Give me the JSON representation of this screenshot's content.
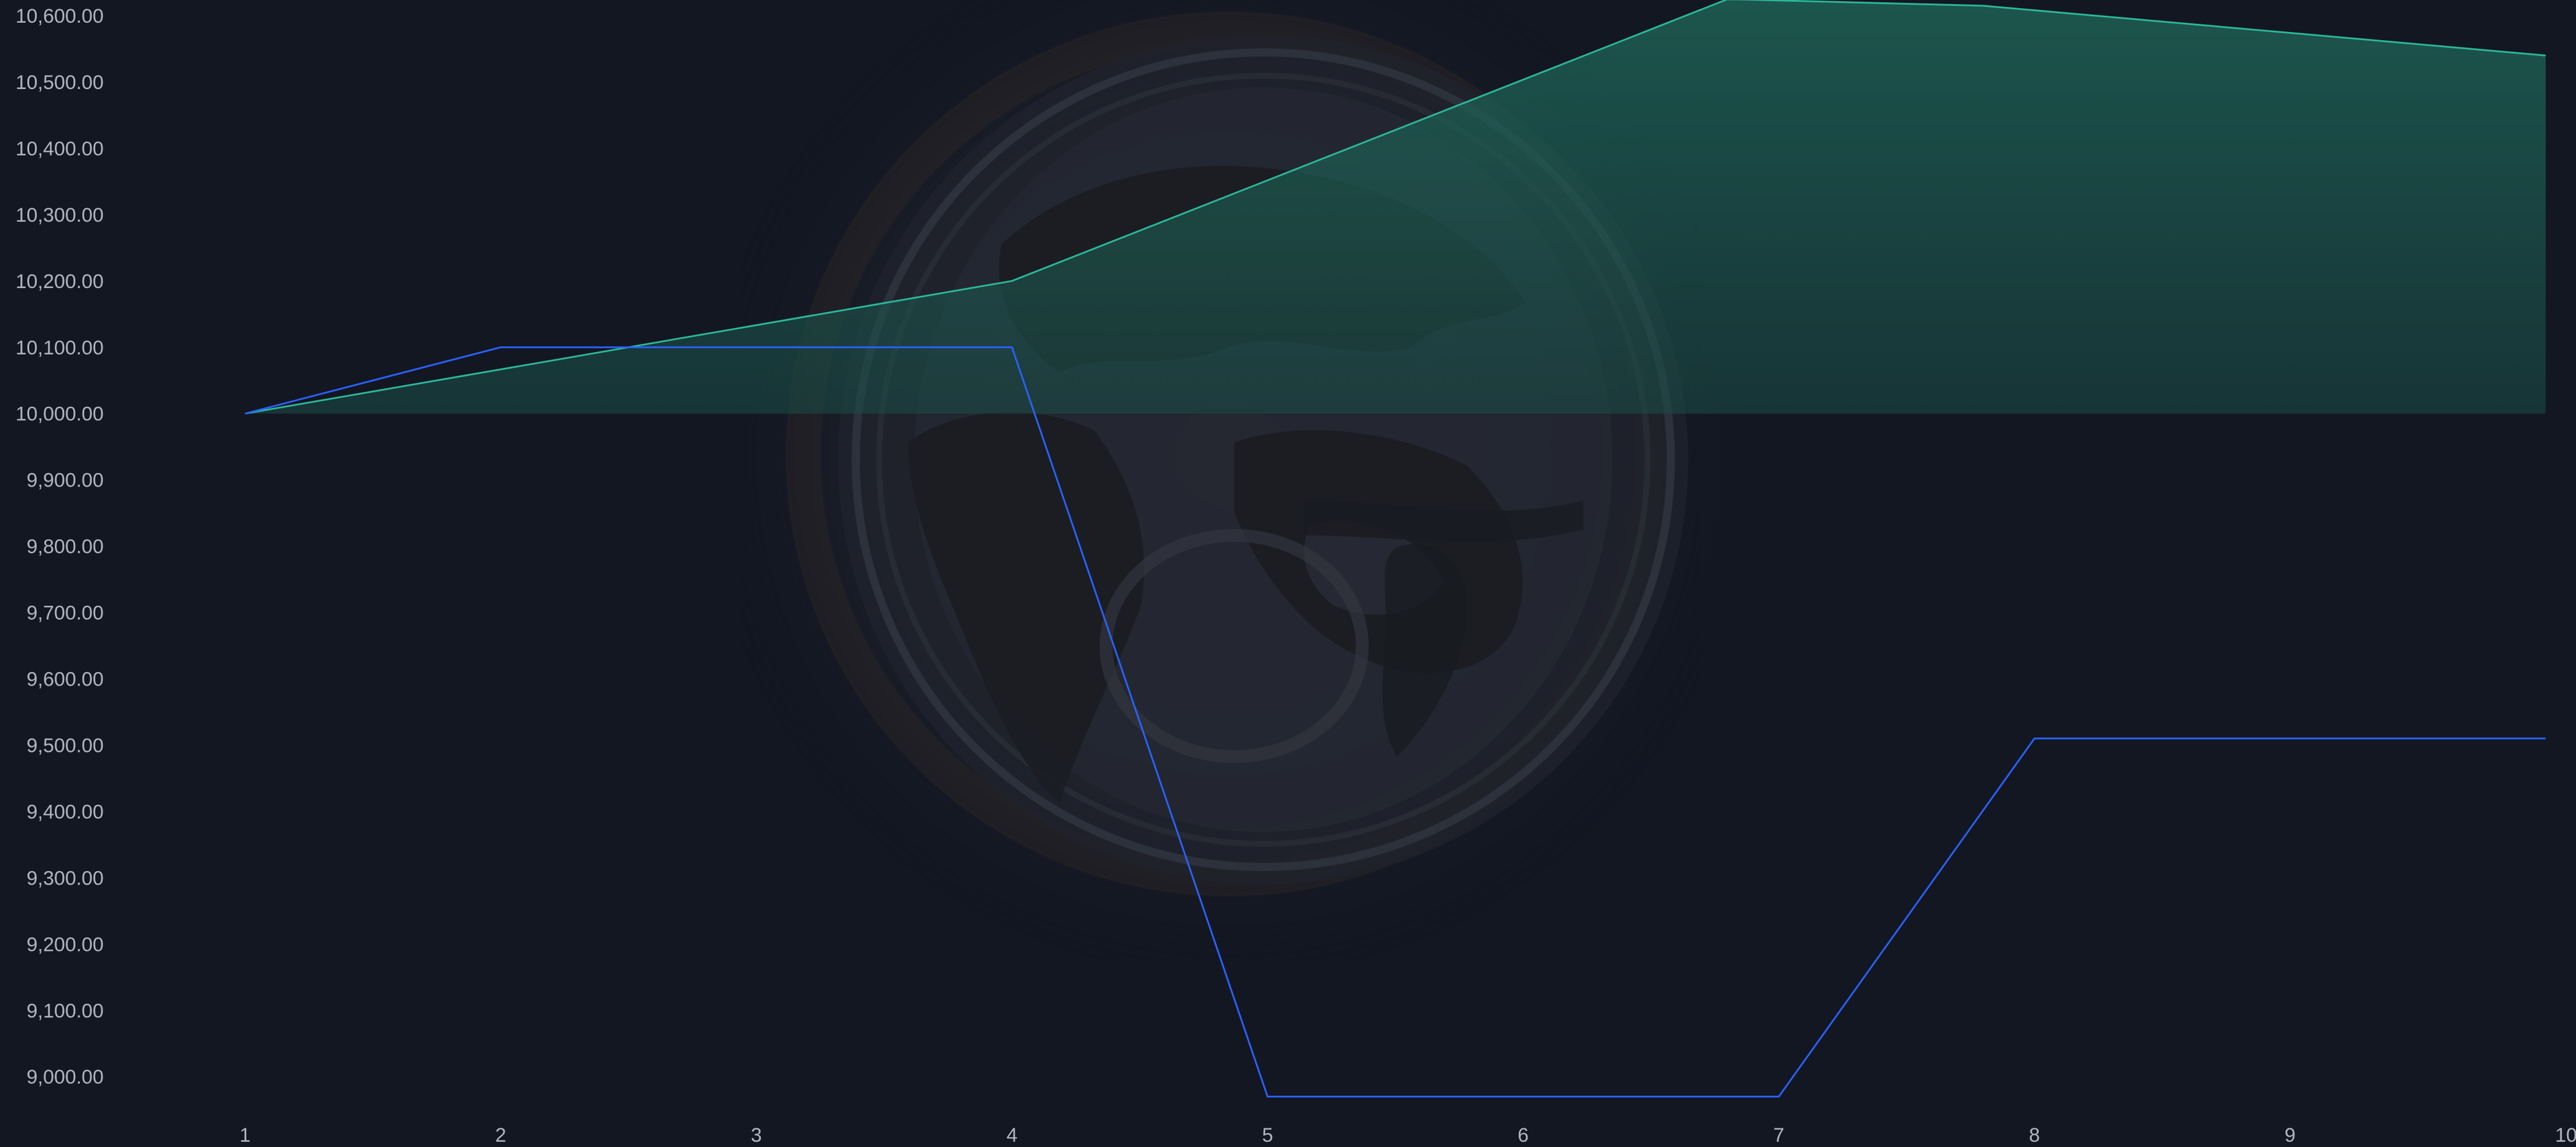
{
  "colors": {
    "background": "#131722",
    "axis_text": "#b2b5be",
    "equity_line": "#2bb89a",
    "equity_fill": "#1f5f52",
    "blue_line": "#2962ff",
    "watermark_dark": "#1e1e24"
  },
  "watermark": {
    "icon": "globe-emblem-icon"
  },
  "chart_data": {
    "type": "area",
    "title": "",
    "xlabel": "",
    "ylabel": "",
    "grid": false,
    "x": [
      1,
      2,
      3,
      4,
      5,
      6,
      7,
      8,
      9,
      10
    ],
    "x_tick_labels": [
      "1",
      "2",
      "3",
      "4",
      "5",
      "6",
      "7",
      "8",
      "9",
      "10"
    ],
    "ylim": [
      8970,
      10600
    ],
    "y_tick_values": [
      9000,
      9100,
      9200,
      9300,
      9400,
      9500,
      9600,
      9700,
      9800,
      9900,
      10000,
      10100,
      10200,
      10300,
      10400,
      10500,
      10600
    ],
    "y_tick_labels": [
      "9,000.00",
      "9,100.00",
      "9,200.00",
      "9,300.00",
      "9,400.00",
      "9,500.00",
      "9,600.00",
      "9,700.00",
      "9,800.00",
      "9,900.00",
      "10,000.00",
      "10,100.00",
      "10,200.00",
      "10,300.00",
      "10,400.00",
      "10,500.00",
      "10,600.00"
    ],
    "baseline": 10000,
    "series": [
      {
        "kind": "area",
        "x": [
          1,
          4,
          6.8,
          7.8,
          10
        ],
        "values": [
          10000,
          10200,
          10625,
          10615,
          10540
        ]
      },
      {
        "kind": "line",
        "x": [
          1,
          2,
          4,
          5,
          7,
          8,
          10
        ],
        "values": [
          10000,
          10100,
          10100,
          8970,
          8970,
          9510,
          9510
        ]
      }
    ]
  }
}
